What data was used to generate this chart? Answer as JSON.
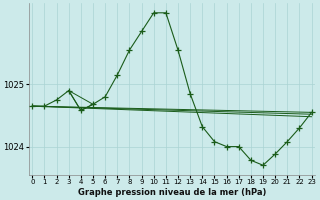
{
  "title": "Graphe pression niveau de la mer (hPa)",
  "background_color": "#cceaea",
  "grid_color": "#aad4d4",
  "line_color": "#1a5c1a",
  "xlim": [
    -0.3,
    23.3
  ],
  "ylim": [
    1023.55,
    1026.3
  ],
  "yticks": [
    1024,
    1025
  ],
  "xticks": [
    0,
    1,
    2,
    3,
    4,
    5,
    6,
    7,
    8,
    9,
    10,
    11,
    12,
    13,
    14,
    15,
    16,
    17,
    18,
    19,
    20,
    21,
    22,
    23
  ],
  "main_series_x": [
    0,
    1,
    2,
    3,
    4,
    5,
    6,
    7,
    8,
    9,
    10,
    11,
    12,
    13,
    14,
    15,
    16,
    17,
    18,
    19,
    20,
    21,
    22,
    23
  ],
  "main_series_y": [
    1024.65,
    1024.65,
    1024.75,
    1024.9,
    1024.58,
    1024.68,
    1024.8,
    1025.15,
    1025.55,
    1025.85,
    1026.15,
    1026.15,
    1025.55,
    1024.85,
    1024.32,
    1024.08,
    1024.0,
    1024.0,
    1023.78,
    1023.7,
    1023.88,
    1024.08,
    1024.3,
    1024.55
  ],
  "extra_lines": [
    {
      "x": [
        0,
        23
      ],
      "y": [
        1024.65,
        1024.55
      ],
      "marker": false
    },
    {
      "x": [
        0,
        23
      ],
      "y": [
        1024.65,
        1024.52
      ],
      "marker": false
    },
    {
      "x": [
        0,
        23
      ],
      "y": [
        1024.65,
        1024.48
      ],
      "marker": false
    },
    {
      "x": [
        3,
        4,
        5
      ],
      "y": [
        1024.9,
        1024.58,
        1024.68
      ],
      "marker": true
    },
    {
      "x": [
        3,
        5
      ],
      "y": [
        1024.9,
        1024.68
      ],
      "marker": false
    }
  ]
}
